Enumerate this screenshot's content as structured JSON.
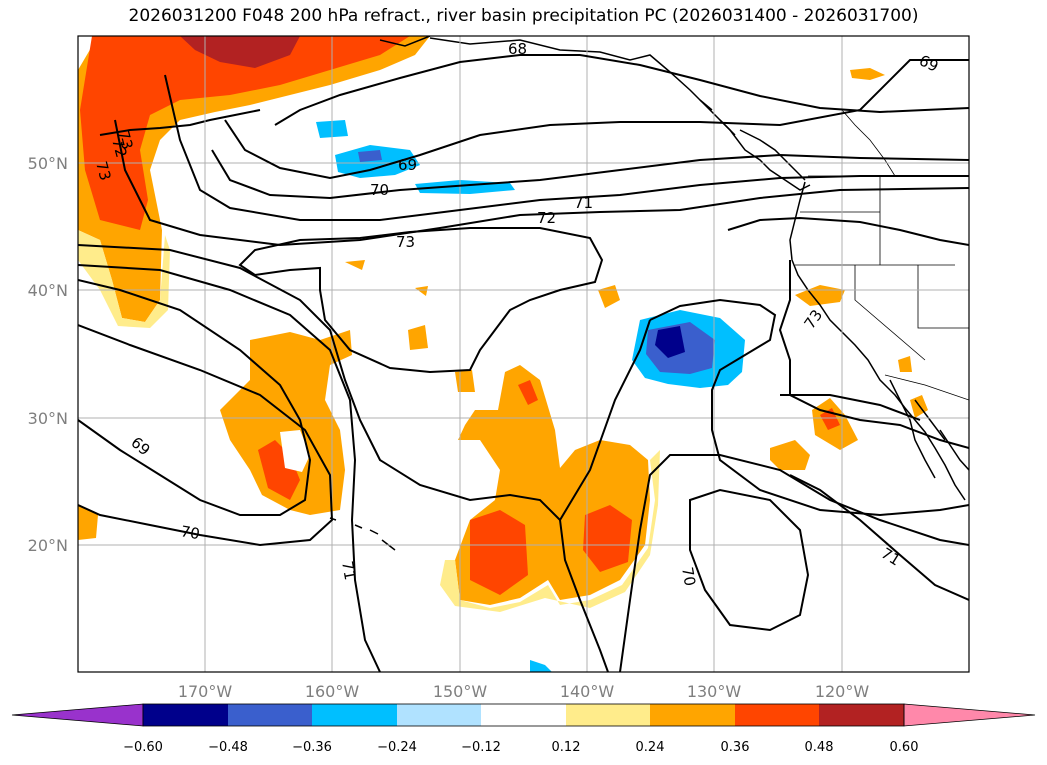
{
  "title": "2026031200 F048 200 hPa refract., river basin precipitation PC (2026031400 - 2026031700)",
  "map": {
    "lon_range": [
      -180,
      -110
    ],
    "lat_range": [
      10,
      60
    ],
    "grid": true,
    "lat_labels": [
      "20°N",
      "30°N",
      "40°N",
      "50°N"
    ],
    "lon_labels": [
      "170°W",
      "160°W",
      "150°W",
      "140°W",
      "130°W",
      "120°W"
    ],
    "contour_labels": [
      "68",
      "69",
      "69",
      "70",
      "71",
      "72",
      "73",
      "73",
      "69",
      "70",
      "71",
      "70",
      "71",
      "73",
      "72",
      "73"
    ]
  },
  "colorbar": {
    "colors": [
      "#9932cc",
      "#00008b",
      "#3a5fcd",
      "#00bfff",
      "#b0e2ff",
      "#ffffff",
      "#ffec8b",
      "#ffa500",
      "#ff4500",
      "#b22222",
      "#ff88aa"
    ],
    "tick_labels": [
      "−0.60",
      "−0.48",
      "−0.36",
      "−0.24",
      "−0.12",
      "0.12",
      "0.24",
      "0.36",
      "0.48",
      "0.60"
    ]
  }
}
